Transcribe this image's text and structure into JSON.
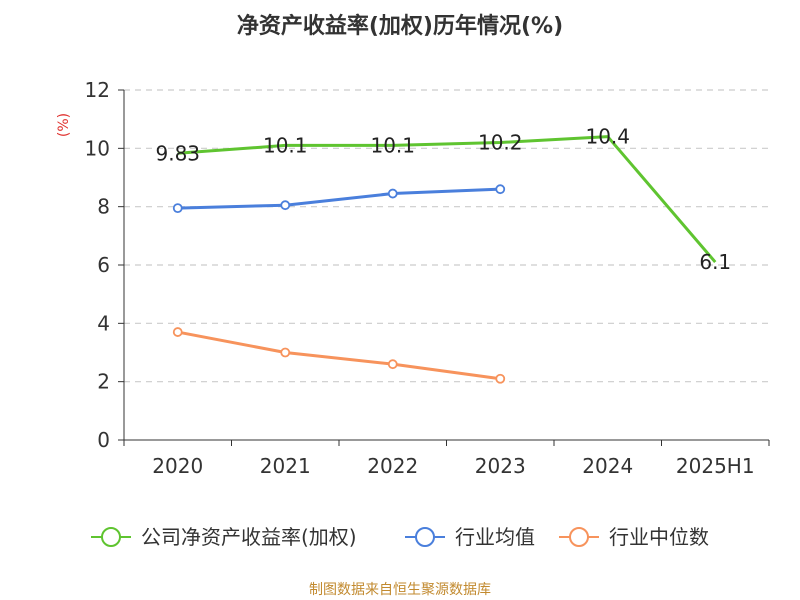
{
  "colors": {
    "series_company": "#5fc430",
    "series_avg": "#4a7fdc",
    "series_median": "#f7935c",
    "grid": "#cccccc",
    "axis": "#333333",
    "ylabel": "#e0322f",
    "source": "#c28a2f"
  },
  "source_text": "制图数据来自恒生聚源数据库",
  "chart_data": {
    "type": "line",
    "title": "净资产收益率(加权)历年情况(%)",
    "xlabel": "",
    "ylabel": "(%)",
    "ylim": [
      0,
      12
    ],
    "yticks": [
      0,
      2,
      4,
      6,
      8,
      10,
      12
    ],
    "grid": true,
    "legend_position": "bottom",
    "categories": [
      "2020",
      "2021",
      "2022",
      "2023",
      "2024",
      "2025H1"
    ],
    "series": [
      {
        "name": "公司净资产收益率(加权)",
        "values": [
          9.83,
          10.1,
          10.1,
          10.2,
          10.4,
          6.1
        ],
        "data_labels": [
          "9.83",
          "10.1",
          "10.1",
          "10.2",
          "10.4",
          "6.1"
        ],
        "color_key": "series_company",
        "markers": false
      },
      {
        "name": "行业均值",
        "values": [
          7.95,
          8.05,
          8.45,
          8.6,
          null,
          null
        ],
        "color_key": "series_avg",
        "markers": true
      },
      {
        "name": "行业中位数",
        "values": [
          3.7,
          3.0,
          2.6,
          2.1,
          null,
          null
        ],
        "color_key": "series_median",
        "markers": true
      }
    ]
  }
}
